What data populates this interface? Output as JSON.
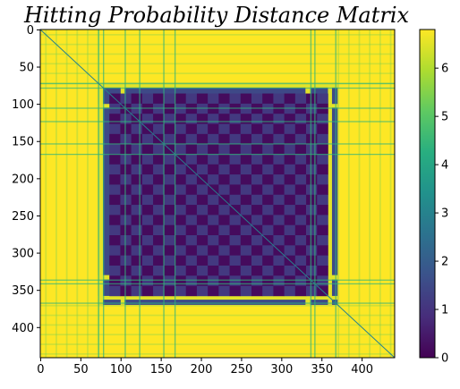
{
  "chart_data": {
    "type": "heatmap",
    "title": "Hitting Probability Distance Matrix",
    "xlabel": "",
    "ylabel": "",
    "matrix_size": 441,
    "xlim": [
      0,
      441
    ],
    "ylim": [
      441,
      0
    ],
    "x_ticks": [
      0,
      50,
      100,
      150,
      200,
      250,
      300,
      350,
      400
    ],
    "y_ticks": [
      0,
      50,
      100,
      150,
      200,
      250,
      300,
      350,
      400
    ],
    "colorbar": {
      "min": 0,
      "max": 6.8,
      "ticks": [
        0,
        1,
        2,
        3,
        4,
        5,
        6
      ],
      "colormap": "viridis"
    },
    "structure": {
      "background_value": 6.8,
      "diagonal_value": 0,
      "inner_block": {
        "start": 86,
        "end": 358,
        "value_min": 0,
        "value_max": 1.5
      },
      "mid_frame": {
        "start": 72,
        "end": 370,
        "value": 1.5
      },
      "yellow_bands": [
        {
          "start": 72,
          "end": 78
        },
        {
          "start": 100,
          "end": 105
        },
        {
          "start": 330,
          "end": 336
        },
        {
          "start": 358,
          "end": 363
        }
      ],
      "stripe_positions": [
        72,
        78,
        105,
        123,
        153,
        167,
        336,
        341,
        367
      ]
    }
  }
}
